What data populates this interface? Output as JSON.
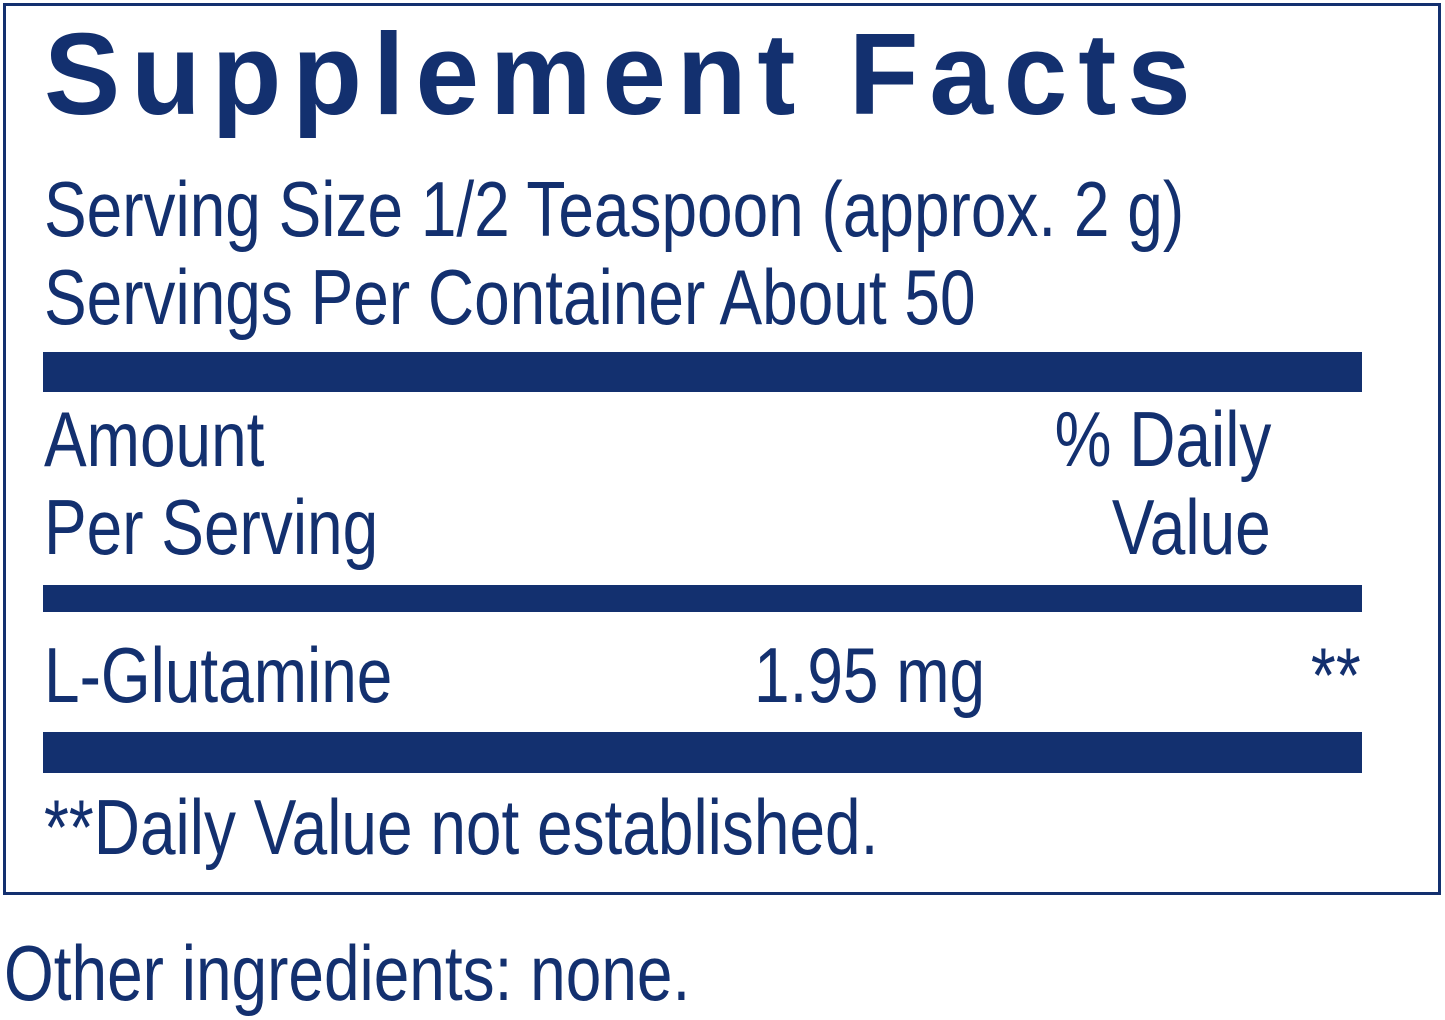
{
  "label": {
    "title": "Supplement Facts",
    "serving_size": "Serving Size 1/2 Teaspoon (approx. 2 g)",
    "servings_per_container": "Servings Per Container About 50",
    "header": {
      "amount_line1": "Amount",
      "amount_line2": "Per Serving",
      "dv_line1": "% Daily",
      "dv_line2": "Value"
    },
    "ingredients": [
      {
        "name": "L-Glutamine",
        "amount": "1.95 mg",
        "dv": "**"
      }
    ],
    "footnote": "**Daily Value not established."
  },
  "other_ingredients": "Other ingredients: none.",
  "colors": {
    "ink": "#13306f",
    "background": "#ffffff"
  }
}
